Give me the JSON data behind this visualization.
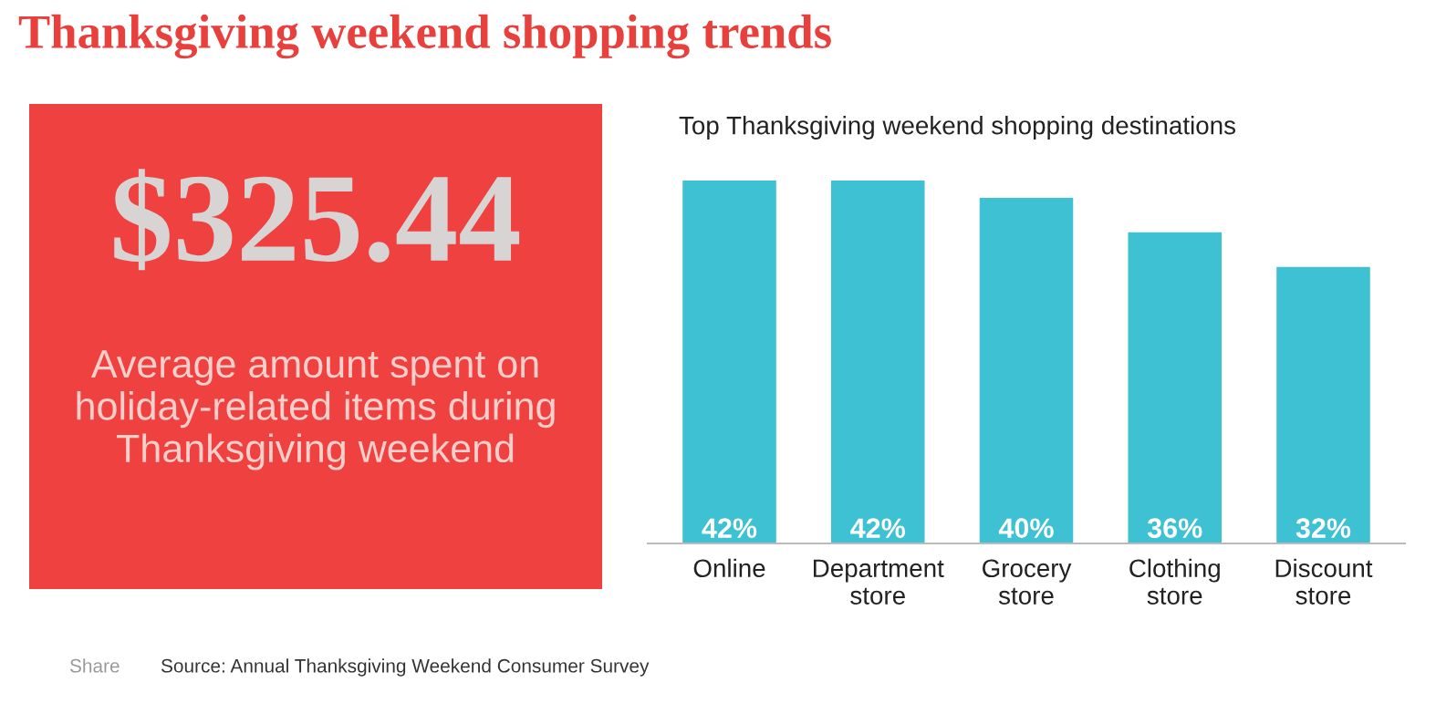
{
  "chart_data": [
    {
      "type": "other",
      "title": "$325.44",
      "subtitle": "Average amount spent on\nholiday-related items during\nThanksgiving weekend",
      "color": "#ee4140",
      "annotations": [
        "Thanksgiving weekend shopping trends",
        "Share",
        "Source: Annual Thanksgiving Weekend Consumer Survey"
      ]
    },
    {
      "type": "bar",
      "title": "Top Thanksgiving weekend shopping destinations",
      "categories": [
        "Online",
        "Department\nstore",
        "Grocery\nstore",
        "Clothing\nstore",
        "Discount\nstore"
      ],
      "values": [
        42,
        42,
        40,
        36,
        32
      ],
      "color": "#3ec1d3",
      "value_labels": [
        "42%",
        "42%",
        "40%",
        "36%",
        "32%"
      ],
      "ylim": [
        0,
        42
      ],
      "tick_labels": "x",
      "grid": false
    }
  ]
}
